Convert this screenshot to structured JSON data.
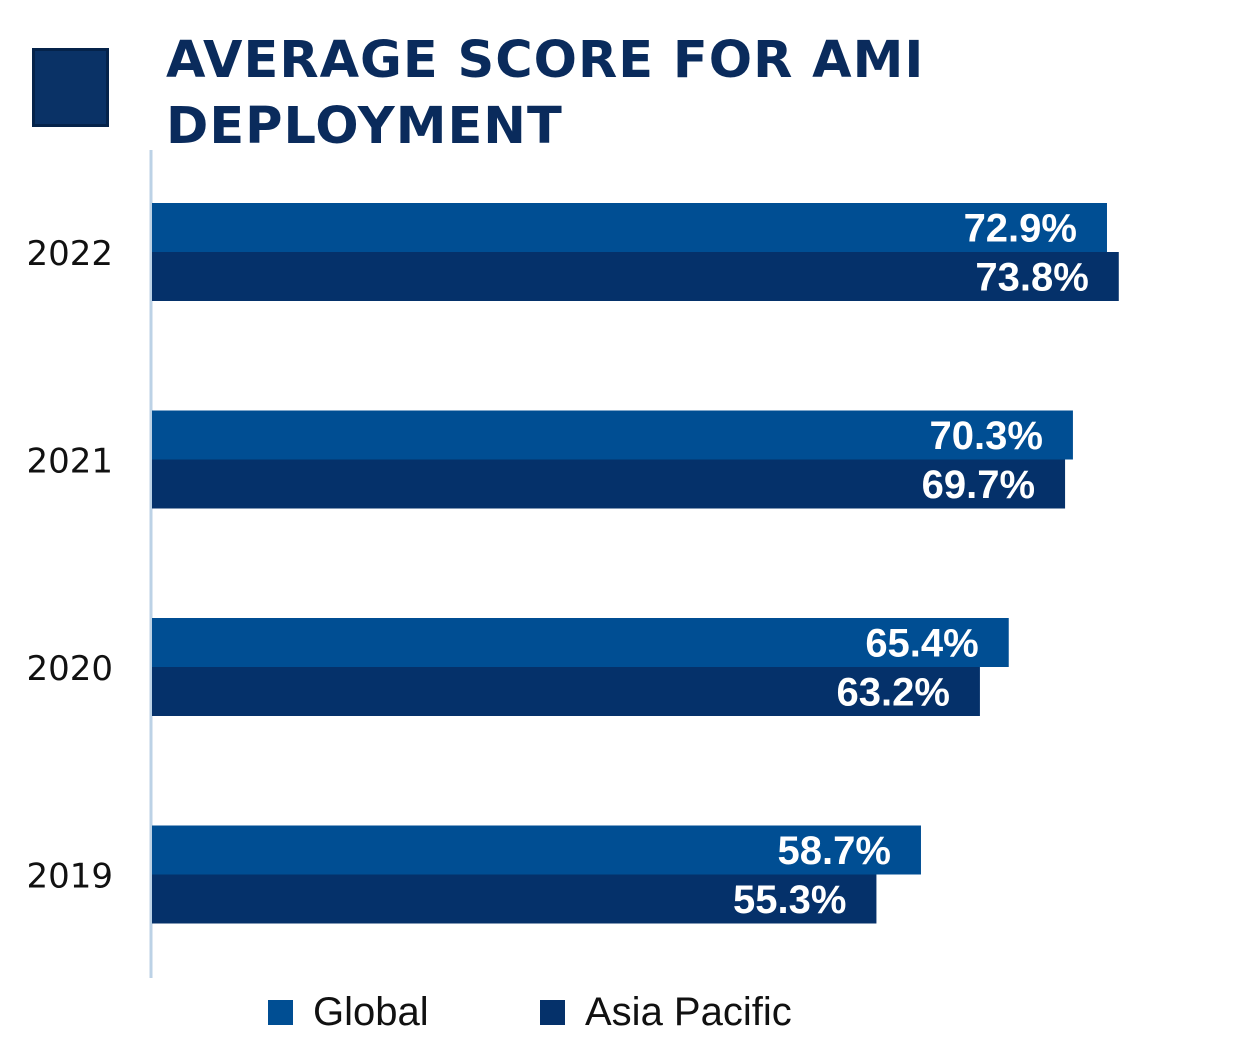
{
  "title_lines": [
    "AVERAGE SCORE FOR AMI",
    "DEPLOYMENT"
  ],
  "colors": {
    "global": "#004e93",
    "asia_pacific": "#05316a",
    "title": "#0a2b5c",
    "badge": "#0a3266",
    "axis_line": "#bcd2e6",
    "value_label": "#ffffff",
    "category_label": "#111111"
  },
  "chart_data": {
    "type": "bar",
    "orientation": "horizontal",
    "title": "AVERAGE SCORE FOR AMI DEPLOYMENT",
    "categories": [
      "2022",
      "2021",
      "2020",
      "2019"
    ],
    "series": [
      {
        "name": "Global",
        "values": [
          72.9,
          70.3,
          65.4,
          58.7
        ],
        "labels": [
          "72.9%",
          "70.3%",
          "65.4%",
          "58.7%"
        ]
      },
      {
        "name": "Asia Pacific",
        "values": [
          73.8,
          69.7,
          63.2,
          55.3
        ],
        "labels": [
          "73.8%",
          "69.7%",
          "63.2%",
          "55.3%"
        ]
      }
    ],
    "xlim": [
      0,
      100
    ],
    "grid": false,
    "legend_position": "bottom"
  },
  "legend": [
    {
      "label": "Global",
      "color": "#004e93"
    },
    {
      "label": "Asia Pacific",
      "color": "#05316a"
    }
  ]
}
